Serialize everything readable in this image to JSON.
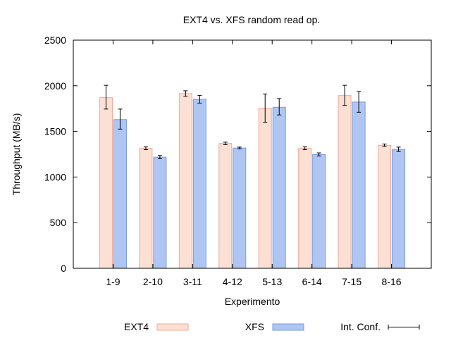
{
  "chart_data": {
    "type": "bar",
    "title": "EXT4 vs. XFS random read op.",
    "xlabel": "Experimento",
    "ylabel": "Throughput (MB/s)",
    "ylim": [
      0,
      2500
    ],
    "yticks": [
      0,
      500,
      1000,
      1500,
      2000,
      2500
    ],
    "grid": false,
    "legend_position": "bottom",
    "categories": [
      "1-9",
      "2-10",
      "3-11",
      "4-12",
      "5-13",
      "6-14",
      "7-15",
      "8-16"
    ],
    "series": [
      {
        "name": "EXT4",
        "color": "#fde0d4",
        "stroke": "#f0a898",
        "values": [
          1870,
          1315,
          1915,
          1368,
          1755,
          1315,
          1893,
          1348
        ],
        "err_low": [
          1745,
          1300,
          1885,
          1355,
          1600,
          1300,
          1785,
          1335
        ],
        "err_high": [
          2005,
          1330,
          1945,
          1382,
          1910,
          1330,
          2005,
          1362
        ]
      },
      {
        "name": "XFS",
        "color": "#afc6f3",
        "stroke": "#7a9be0",
        "values": [
          1630,
          1218,
          1852,
          1318,
          1765,
          1248,
          1822,
          1303
        ],
        "err_low": [
          1525,
          1200,
          1810,
          1308,
          1680,
          1230,
          1710,
          1280
        ],
        "err_high": [
          1745,
          1236,
          1895,
          1328,
          1860,
          1265,
          1938,
          1328
        ]
      }
    ],
    "error_legend": "Int. Conf."
  }
}
